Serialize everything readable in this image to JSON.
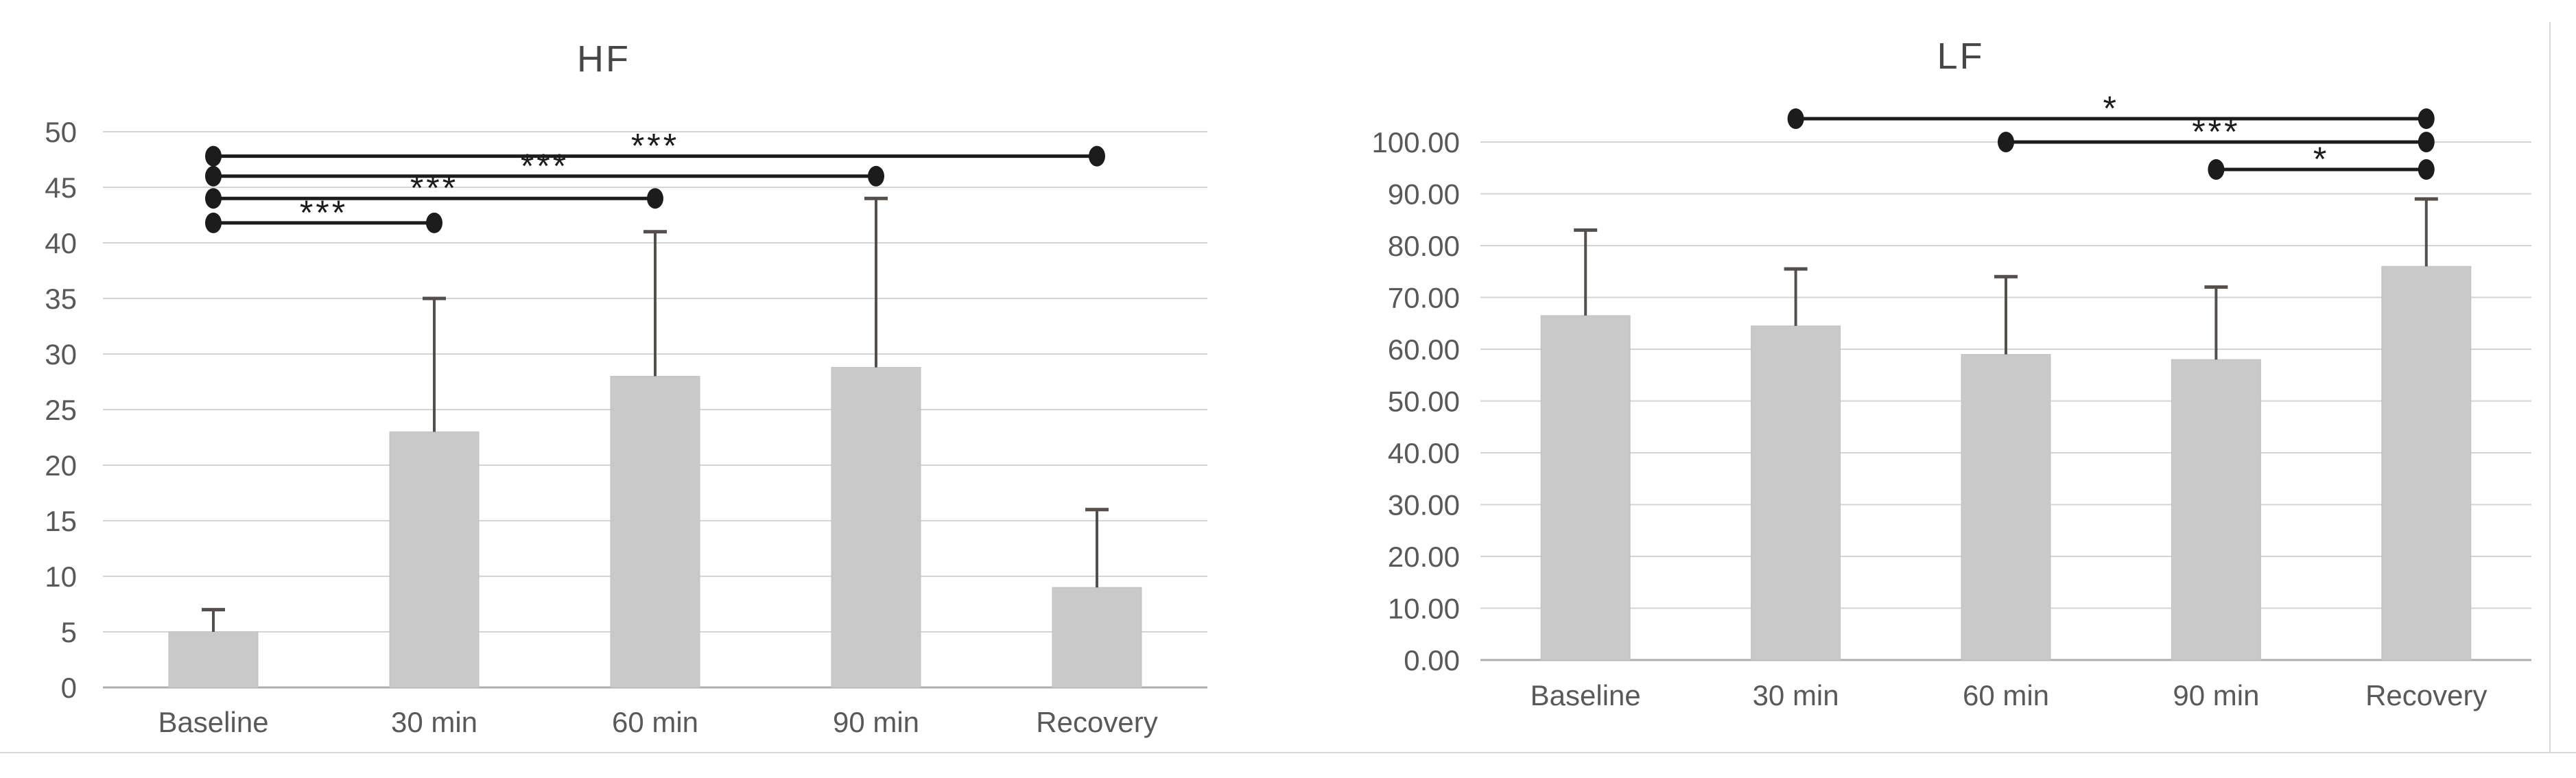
{
  "figure": {
    "background": "#ffffff",
    "border_color": "#d9d9d9"
  },
  "style": {
    "bar_fill": "#c9c9c9",
    "bar_edge": "#c1c1c1",
    "error_color": "#544f4b",
    "grid_color": "#d4d4d4",
    "axis_color": "#aeaeae",
    "sig_color": "#1c1c1c",
    "text_color": "#595959",
    "title_color": "#474747"
  },
  "chart_data": [
    {
      "id": "hf",
      "type": "bar",
      "title": "HF",
      "xlabel": "",
      "ylabel": "",
      "grid": true,
      "legend": "none",
      "categories": [
        "Baseline",
        "30 min",
        "60 min",
        "90 min",
        "Recovery"
      ],
      "values": [
        5,
        23,
        28,
        28.8,
        9
      ],
      "error_upper": [
        7,
        35,
        41,
        44,
        16
      ],
      "ylim": [
        0,
        50
      ],
      "y_ticks": [
        0,
        5,
        10,
        15,
        20,
        25,
        30,
        35,
        40,
        45,
        50
      ],
      "y_tick_labels": [
        "0",
        "5",
        "10",
        "15",
        "20",
        "25",
        "30",
        "35",
        "40",
        "45",
        "50"
      ],
      "significance": [
        {
          "from": "Baseline",
          "to": "Recovery",
          "label": "***",
          "y": 47.8
        },
        {
          "from": "Baseline",
          "to": "90 min",
          "label": "***",
          "y": 46
        },
        {
          "from": "Baseline",
          "to": "60 min",
          "label": "***",
          "y": 44
        },
        {
          "from": "Baseline",
          "to": "30 min",
          "label": "***",
          "y": 41.8
        }
      ]
    },
    {
      "id": "lf",
      "type": "bar",
      "title": "LF",
      "xlabel": "",
      "ylabel": "",
      "grid": true,
      "legend": "none",
      "categories": [
        "Baseline",
        "30 min",
        "60 min",
        "90 min",
        "Recovery"
      ],
      "values": [
        66.5,
        64.5,
        59,
        58,
        76
      ],
      "error_upper": [
        83,
        75.5,
        74,
        72,
        89
      ],
      "ylim": [
        0,
        100
      ],
      "y_ticks": [
        0,
        10,
        20,
        30,
        40,
        50,
        60,
        70,
        80,
        90,
        100
      ],
      "y_tick_labels": [
        "0.00",
        "10.00",
        "20.00",
        "30.00",
        "40.00",
        "50.00",
        "60.00",
        "70.00",
        "80.00",
        "90.00",
        "100.00"
      ],
      "significance": [
        {
          "from": "30 min",
          "to": "Recovery",
          "label": "*",
          "y": 104.5
        },
        {
          "from": "60 min",
          "to": "Recovery",
          "label": "***",
          "y": 100
        },
        {
          "from": "90 min",
          "to": "Recovery",
          "label": "*",
          "y": 94.7
        }
      ]
    }
  ]
}
